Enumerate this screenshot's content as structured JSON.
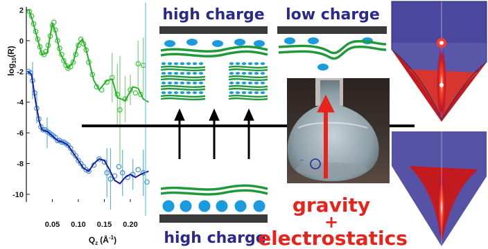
{
  "chart_data": {
    "type": "scatter",
    "xlabel": "Q",
    "xlabel_sub": "z",
    "xlabel_unit": "(Å",
    "xlabel_unit_sup": "-1",
    "xlabel_unit_close": ")",
    "ylabel": "log",
    "ylabel_sub": "10",
    "ylabel_tail": "(R)",
    "xlim": [
      0.0,
      0.24
    ],
    "ylim": [
      -10.5,
      2.2
    ],
    "x_ticks": [
      "0.05",
      "0.10",
      "0.15",
      "0.20"
    ],
    "x_tick_values": [
      0.05,
      0.1,
      0.15,
      0.2
    ],
    "y_ticks": [
      "2",
      "0",
      "-2",
      "-4",
      "-6",
      "-8",
      "-10"
    ],
    "y_tick_values": [
      2,
      0,
      -2,
      -4,
      -6,
      -8,
      -10
    ],
    "series": [
      {
        "color": "#22b422",
        "fit": [
          [
            0.005,
            2.0
          ],
          [
            0.012,
            1.3
          ],
          [
            0.02,
            0.3
          ],
          [
            0.03,
            -0.9
          ],
          [
            0.04,
            -0.8
          ],
          [
            0.05,
            1.1
          ],
          [
            0.056,
            0.6
          ],
          [
            0.065,
            -0.8
          ],
          [
            0.08,
            -1.8
          ],
          [
            0.09,
            -1.4
          ],
          [
            0.1,
            -0.2
          ],
          [
            0.108,
            0.1
          ],
          [
            0.115,
            -0.6
          ],
          [
            0.13,
            -2.6
          ],
          [
            0.14,
            -3.2
          ],
          [
            0.155,
            -2.6
          ],
          [
            0.165,
            -2.5
          ],
          [
            0.175,
            -3.7
          ],
          [
            0.19,
            -3.9
          ],
          [
            0.205,
            -3.0
          ],
          [
            0.215,
            -3.1
          ],
          [
            0.225,
            -3.8
          ],
          [
            0.235,
            -4.0
          ]
        ],
        "points": [
          [
            0.006,
            1.9
          ],
          [
            0.01,
            1.6
          ],
          [
            0.014,
            1.1
          ],
          [
            0.018,
            0.6
          ],
          [
            0.022,
            0.1
          ],
          [
            0.026,
            -0.4
          ],
          [
            0.03,
            -0.8
          ],
          [
            0.034,
            -0.9
          ],
          [
            0.038,
            -0.7
          ],
          [
            0.042,
            -0.3
          ],
          [
            0.046,
            0.3
          ],
          [
            0.05,
            1.0
          ],
          [
            0.053,
            1.2
          ],
          [
            0.056,
            0.7
          ],
          [
            0.06,
            0.0
          ],
          [
            0.064,
            -0.5
          ],
          [
            0.068,
            -0.9
          ],
          [
            0.072,
            -1.3
          ],
          [
            0.076,
            -1.6
          ],
          [
            0.08,
            -1.8
          ],
          [
            0.085,
            -1.7
          ],
          [
            0.09,
            -1.4
          ],
          [
            0.095,
            -0.9
          ],
          [
            0.1,
            -0.3
          ],
          [
            0.105,
            0.1
          ],
          [
            0.11,
            -0.2
          ],
          [
            0.115,
            -0.6
          ],
          [
            0.12,
            -1.4
          ],
          [
            0.127,
            -2.2
          ],
          [
            0.135,
            -3.0
          ],
          [
            0.145,
            -3.2
          ],
          [
            0.155,
            -2.7
          ],
          [
            0.165,
            -2.4
          ],
          [
            0.175,
            -3.5
          ],
          [
            0.18,
            -4.5
          ],
          [
            0.19,
            -3.8
          ],
          [
            0.2,
            -3.2
          ],
          [
            0.21,
            -3.4
          ],
          [
            0.215,
            -1.5
          ],
          [
            0.22,
            -3.5
          ],
          [
            0.225,
            -1.6
          ]
        ],
        "errors": [
          [
            0.165,
            -2.4,
            1.6
          ],
          [
            0.175,
            -3.5,
            2.0
          ],
          [
            0.18,
            -4.5,
            3.5
          ],
          [
            0.19,
            -3.8,
            1.5
          ],
          [
            0.2,
            -3.2,
            1.0
          ],
          [
            0.215,
            -1.5,
            1.5
          ],
          [
            0.225,
            -1.6,
            1.8
          ]
        ]
      },
      {
        "color": "#1a1aa0",
        "fit": [
          [
            0.003,
            -2.0
          ],
          [
            0.01,
            -2.2
          ],
          [
            0.018,
            -4.0
          ],
          [
            0.025,
            -5.3
          ],
          [
            0.03,
            -5.8
          ],
          [
            0.04,
            -5.9
          ],
          [
            0.05,
            -6.2
          ],
          [
            0.06,
            -6.5
          ],
          [
            0.07,
            -6.6
          ],
          [
            0.08,
            -6.8
          ],
          [
            0.09,
            -7.3
          ],
          [
            0.1,
            -7.8
          ],
          [
            0.11,
            -8.3
          ],
          [
            0.12,
            -8.5
          ],
          [
            0.13,
            -8.0
          ],
          [
            0.14,
            -7.7
          ],
          [
            0.15,
            -7.8
          ],
          [
            0.16,
            -8.4
          ],
          [
            0.17,
            -9.1
          ],
          [
            0.18,
            -9.3
          ],
          [
            0.19,
            -8.9
          ],
          [
            0.2,
            -8.7
          ],
          [
            0.21,
            -8.9
          ],
          [
            0.22,
            -8.7
          ],
          [
            0.235,
            -8.5
          ]
        ],
        "points": [
          [
            0.004,
            -2.0
          ],
          [
            0.008,
            -2.1
          ],
          [
            0.012,
            -2.6
          ],
          [
            0.016,
            -3.4
          ],
          [
            0.02,
            -4.4
          ],
          [
            0.024,
            -5.1
          ],
          [
            0.028,
            -5.6
          ],
          [
            0.032,
            -5.8
          ],
          [
            0.036,
            -5.8
          ],
          [
            0.04,
            -5.9
          ],
          [
            0.044,
            -6.0
          ],
          [
            0.048,
            -6.1
          ],
          [
            0.052,
            -6.2
          ],
          [
            0.056,
            -6.3
          ],
          [
            0.06,
            -6.5
          ],
          [
            0.064,
            -6.5
          ],
          [
            0.068,
            -6.6
          ],
          [
            0.072,
            -6.6
          ],
          [
            0.076,
            -6.7
          ],
          [
            0.08,
            -6.8
          ],
          [
            0.085,
            -7.0
          ],
          [
            0.09,
            -7.3
          ],
          [
            0.095,
            -7.5
          ],
          [
            0.1,
            -7.8
          ],
          [
            0.105,
            -8.0
          ],
          [
            0.11,
            -8.2
          ],
          [
            0.115,
            -8.4
          ],
          [
            0.12,
            -8.5
          ],
          [
            0.13,
            -8.1
          ],
          [
            0.14,
            -7.7
          ],
          [
            0.15,
            -7.9
          ],
          [
            0.155,
            -8.6
          ],
          [
            0.162,
            -9.0
          ],
          [
            0.17,
            -8.8
          ],
          [
            0.178,
            -8.2
          ],
          [
            0.185,
            -8.6
          ],
          [
            0.195,
            -8.9
          ],
          [
            0.205,
            -8.7
          ],
          [
            0.215,
            -8.4
          ],
          [
            0.225,
            -8.6
          ],
          [
            0.232,
            -9.2
          ]
        ],
        "errors": [
          [
            0.012,
            -2.6,
            1.2
          ],
          [
            0.02,
            -4.4,
            1.0
          ],
          [
            0.04,
            -6.0,
            1.0
          ],
          [
            0.155,
            -8.6,
            1.6
          ],
          [
            0.162,
            -9.0,
            2.0
          ],
          [
            0.185,
            -8.6,
            1.5
          ],
          [
            0.205,
            -8.7,
            1.0
          ],
          [
            0.225,
            -8.6,
            1.5
          ]
        ]
      }
    ]
  },
  "labels": {
    "high_charge_top": "high charge",
    "low_charge": "low charge",
    "high_charge_bottom": "high charge",
    "gravity": "gravity",
    "plus": "+",
    "electrostatics": "electrostatics"
  },
  "colors": {
    "label_blue": "#2a2a8c",
    "label_red": "#e8231b",
    "membrane_green": "#1f9a3a",
    "ion_blue": "#1a9be0",
    "substrate": "#3a3a3a",
    "arrow_black": "#000000",
    "arrow_red": "#e8231b"
  }
}
